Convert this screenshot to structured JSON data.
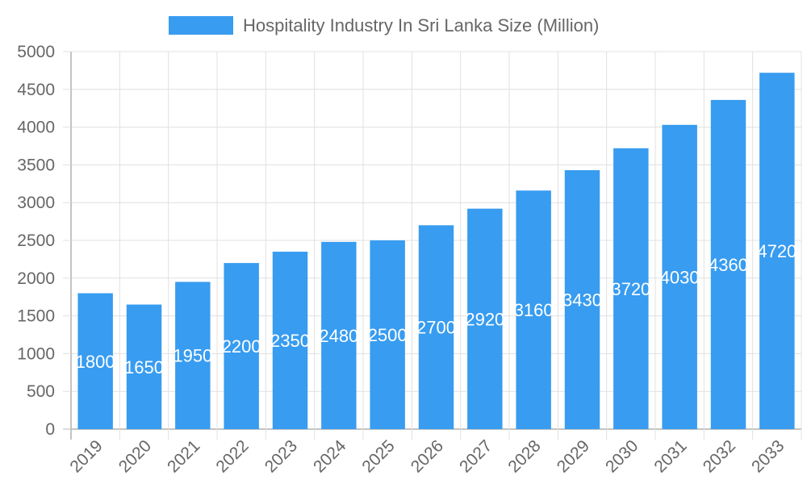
{
  "chart_data": {
    "type": "bar",
    "title": "",
    "xlabel": "",
    "ylabel": "",
    "categories": [
      "2019",
      "2020",
      "2021",
      "2022",
      "2023",
      "2024",
      "2025",
      "2026",
      "2027",
      "2028",
      "2029",
      "2030",
      "2031",
      "2032",
      "2033"
    ],
    "series": [
      {
        "name": "Hospitality Industry In Sri Lanka Size (Million)",
        "values": [
          1800,
          1650,
          1950,
          2200,
          2350,
          2480,
          2500,
          2700,
          2920,
          3160,
          3430,
          3720,
          4030,
          4360,
          4720
        ]
      }
    ],
    "ylim": [
      0,
      5000
    ],
    "yticks": [
      0,
      500,
      1000,
      1500,
      2000,
      2500,
      3000,
      3500,
      4000,
      4500,
      5000
    ],
    "grid": true,
    "legend_position": "top",
    "data_labels": true,
    "colors": {
      "bar": "#389cf0",
      "grid": "#e0e0e0",
      "axis": "#b0b0b0",
      "text": "#666666",
      "data_label": "#ffffff"
    }
  }
}
